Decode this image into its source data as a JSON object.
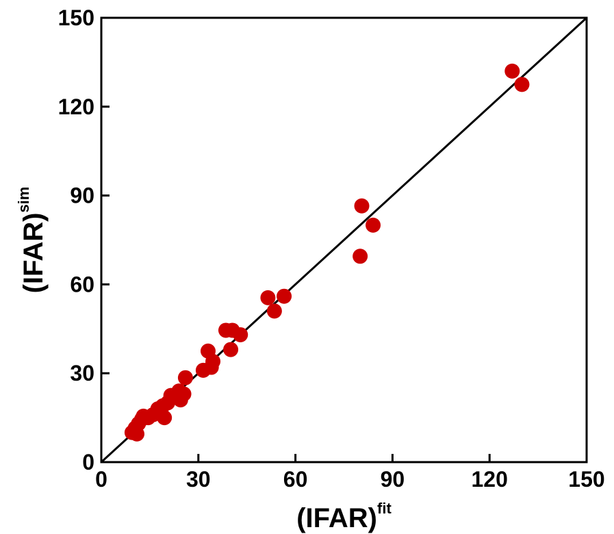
{
  "chart_data": {
    "type": "scatter",
    "xlabel": "(IFAR)",
    "xlabel_superscript": "fit",
    "ylabel": "(IFAR)",
    "ylabel_superscript": "sim",
    "xlim": [
      0,
      150
    ],
    "ylim": [
      0,
      150
    ],
    "xticks": [
      0,
      30,
      60,
      90,
      120,
      150
    ],
    "yticks": [
      0,
      30,
      60,
      90,
      120,
      150
    ],
    "xtick_labels": [
      "0",
      "30",
      "60",
      "90",
      "120",
      "150"
    ],
    "ytick_labels": [
      "0",
      "30",
      "60",
      "90",
      "120",
      "150"
    ],
    "grid": false,
    "reference_line": {
      "type": "identity",
      "from": [
        0,
        0
      ],
      "to": [
        150,
        150
      ],
      "color": "#000000"
    },
    "series": [
      {
        "color": "#cc0000",
        "points": [
          {
            "x": 9.5,
            "y": 10.0
          },
          {
            "x": 10.5,
            "y": 11.5
          },
          {
            "x": 11.0,
            "y": 9.5
          },
          {
            "x": 11.5,
            "y": 13.0
          },
          {
            "x": 12.5,
            "y": 14.5
          },
          {
            "x": 13.0,
            "y": 15.5
          },
          {
            "x": 14.5,
            "y": 15.0
          },
          {
            "x": 16.0,
            "y": 16.0
          },
          {
            "x": 17.5,
            "y": 18.0
          },
          {
            "x": 19.0,
            "y": 19.0
          },
          {
            "x": 19.5,
            "y": 15.0
          },
          {
            "x": 20.5,
            "y": 20.0
          },
          {
            "x": 21.5,
            "y": 22.5
          },
          {
            "x": 24.0,
            "y": 24.0
          },
          {
            "x": 24.5,
            "y": 21.0
          },
          {
            "x": 25.5,
            "y": 23.0
          },
          {
            "x": 26.0,
            "y": 28.5
          },
          {
            "x": 31.5,
            "y": 31.0
          },
          {
            "x": 33.0,
            "y": 37.5
          },
          {
            "x": 34.0,
            "y": 32.0
          },
          {
            "x": 34.5,
            "y": 34.0
          },
          {
            "x": 38.5,
            "y": 44.5
          },
          {
            "x": 40.0,
            "y": 38.0
          },
          {
            "x": 40.5,
            "y": 44.5
          },
          {
            "x": 43.0,
            "y": 43.0
          },
          {
            "x": 51.5,
            "y": 55.5
          },
          {
            "x": 53.5,
            "y": 51.0
          },
          {
            "x": 56.5,
            "y": 56.0
          },
          {
            "x": 80.0,
            "y": 69.5
          },
          {
            "x": 80.5,
            "y": 86.5
          },
          {
            "x": 84.0,
            "y": 80.0
          },
          {
            "x": 127.0,
            "y": 132.0
          },
          {
            "x": 130.0,
            "y": 127.5
          }
        ]
      }
    ]
  }
}
